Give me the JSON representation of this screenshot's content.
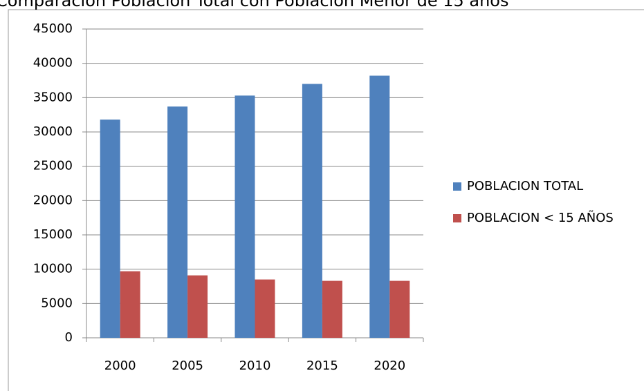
{
  "chart_data": {
    "type": "bar",
    "title": "Comparación Población Total con Población Menor de 15 años",
    "categories": [
      "2000",
      "2005",
      "2010",
      "2015",
      "2020"
    ],
    "series": [
      {
        "name": "POBLACION TOTAL",
        "color": "#4f81bd",
        "values": [
          31800,
          33700,
          35300,
          37000,
          38200
        ]
      },
      {
        "name": "POBLACION < 15 AÑOS",
        "color": "#c0504d",
        "values": [
          9700,
          9100,
          8500,
          8300,
          8300
        ]
      }
    ],
    "ylim": [
      0,
      45000
    ],
    "yticks": [
      0,
      5000,
      10000,
      15000,
      20000,
      25000,
      30000,
      35000,
      40000,
      45000
    ],
    "grid": true,
    "legend": "right"
  }
}
